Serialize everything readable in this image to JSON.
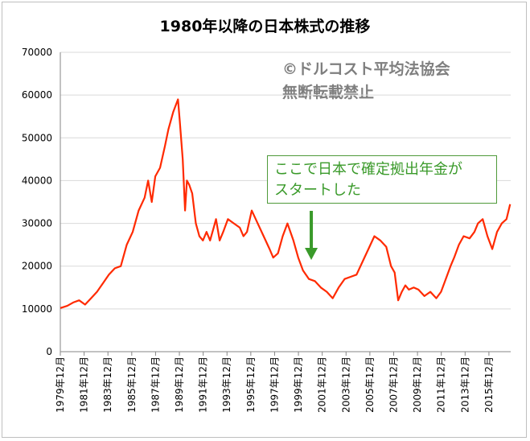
{
  "chart_data": {
    "type": "line",
    "title": "1980年以降の日本株式の推移",
    "xlabel": "",
    "ylabel": "",
    "ylim": [
      0,
      70000
    ],
    "yticks": [
      0,
      10000,
      20000,
      30000,
      40000,
      50000,
      60000,
      70000
    ],
    "xticks": [
      "1979年12月",
      "1981年12月",
      "1983年12月",
      "1985年12月",
      "1987年12月",
      "1989年12月",
      "1991年12月",
      "1993年12月",
      "1995年12月",
      "1997年12月",
      "1999年12月",
      "2001年12月",
      "2003年12月",
      "2005年12月",
      "2007年12月",
      "2009年12月",
      "2011年12月",
      "2013年12月",
      "2015年12月"
    ],
    "grid": true,
    "legend": "none",
    "series": [
      {
        "color": "#ff2a00",
        "x": [
          1979.92,
          1980.5,
          1981.0,
          1981.5,
          1982.0,
          1982.5,
          1983.0,
          1983.5,
          1984.0,
          1984.5,
          1985.0,
          1985.5,
          1986.0,
          1986.5,
          1987.0,
          1987.3,
          1987.6,
          1987.9,
          1988.3,
          1988.7,
          1989.0,
          1989.4,
          1989.8,
          1989.95,
          1990.2,
          1990.4,
          1990.55,
          1990.75,
          1991.0,
          1991.3,
          1991.6,
          1991.9,
          1992.2,
          1992.5,
          1992.8,
          1993.0,
          1993.3,
          1993.6,
          1994.0,
          1994.5,
          1995.0,
          1995.3,
          1995.6,
          1996.0,
          1996.5,
          1997.0,
          1997.5,
          1997.8,
          1998.2,
          1998.6,
          1999.0,
          1999.5,
          1999.9,
          2000.3,
          2000.8,
          2001.3,
          2001.8,
          2002.3,
          2002.8,
          2003.3,
          2003.8,
          2004.3,
          2004.8,
          2005.3,
          2005.8,
          2006.3,
          2006.8,
          2007.3,
          2007.7,
          2008.0,
          2008.3,
          2008.6,
          2008.9,
          2009.2,
          2009.6,
          2010.0,
          2010.5,
          2011.0,
          2011.5,
          2011.9,
          2012.3,
          2012.7,
          2013.0,
          2013.4,
          2013.8,
          2014.3,
          2014.7,
          2015.0,
          2015.4,
          2015.8,
          2016.2,
          2016.6,
          2017.0,
          2017.4,
          2017.7
        ],
        "values": [
          10200,
          10700,
          11500,
          12000,
          11000,
          12500,
          14000,
          16000,
          18000,
          19500,
          20000,
          25000,
          28000,
          33000,
          36000,
          40000,
          35000,
          41000,
          43000,
          48000,
          52000,
          56000,
          59000,
          54000,
          45000,
          33000,
          40000,
          39000,
          37000,
          30000,
          27000,
          26000,
          28000,
          26000,
          29000,
          31000,
          26000,
          28000,
          31000,
          30000,
          29000,
          27000,
          28000,
          33000,
          30000,
          27000,
          24000,
          22000,
          23000,
          27000,
          30000,
          26000,
          22000,
          19000,
          17000,
          16500,
          15000,
          14000,
          12500,
          15000,
          17000,
          17500,
          18000,
          21000,
          24000,
          27000,
          26000,
          24500,
          20000,
          18500,
          12000,
          14000,
          15500,
          14500,
          15000,
          14500,
          13000,
          14000,
          12500,
          14000,
          17000,
          20000,
          22000,
          25000,
          27000,
          26500,
          28000,
          30000,
          31000,
          27000,
          24000,
          28000,
          30000,
          31000,
          34500
        ]
      }
    ],
    "annotations": [
      {
        "text": "ここで日本で確定拠出年金がスタートした",
        "x": 2001.0,
        "lines": [
          "ここで日本で確定拠出年金が",
          "スタートした"
        ]
      }
    ]
  },
  "watermark": {
    "line1": "©ドルコスト平均法協会",
    "line2": "無断転載禁止"
  }
}
